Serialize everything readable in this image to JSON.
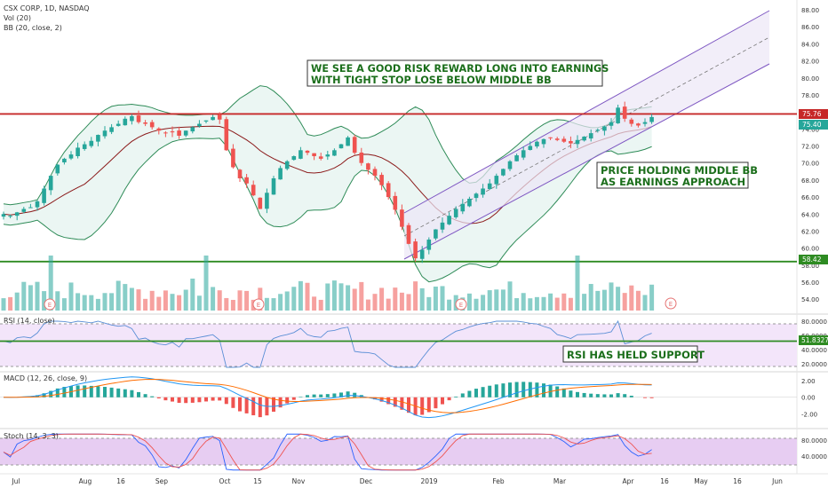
{
  "header": {
    "title": "CSX CORP, 1D, NASDAQ",
    "vol_label": "Vol (20)",
    "bb_label": "BB (20, close, 2)"
  },
  "annotations": {
    "note1_line1": "WE SEE A GOOD RISK REWARD LONG INTO EARNINGS",
    "note1_line2": "WITH TIGHT STOP LOSE BELOW MIDDLE BB",
    "note2_line1": "PRICE HOLDING MIDDLE BB",
    "note2_line2": "AS EARNINGS APPROACH",
    "note3": "RSI HAS HELD SUPPORT"
  },
  "earnings_marker": "E",
  "colors": {
    "up": "#26a69a",
    "down": "#ef5350",
    "resistance": "#c62828",
    "support": "#2e8b22",
    "bb_mid": "#8b1a1a",
    "bb_band": "#2e8b57",
    "channel": "#7e57c2",
    "macd": "#2196f3",
    "signal": "#ff6d00",
    "rsi": "#5b8fd6",
    "stoch_k": "#2962ff",
    "stoch_d": "#ef5350"
  },
  "chart_data": [
    {
      "type": "candlestick",
      "title": "CSX CORP, 1D, NASDAQ",
      "ylim": [
        52,
        89
      ],
      "yticks": [
        "88.00",
        "86.00",
        "84.00",
        "82.00",
        "80.00",
        "78.00",
        "76.00",
        "74.00",
        "72.00",
        "70.00",
        "68.00",
        "66.00",
        "64.00",
        "62.00",
        "60.00",
        "58.00",
        "56.00",
        "54.00"
      ],
      "xticks": [
        "Jul",
        "Aug",
        "16",
        "Sep",
        "Oct",
        "15",
        "Nov",
        "Dec",
        "2019",
        "Feb",
        "Mar",
        "Apr",
        "16",
        "May",
        "16",
        "Jun"
      ],
      "price_labels": {
        "resistance": "75.76",
        "last": "75.40",
        "support": "58.42"
      },
      "levels": {
        "resistance": 75.76,
        "support": 58.42
      },
      "closes_approx": [
        64.0,
        63.8,
        64.2,
        64.6,
        64.8,
        65.5,
        67.0,
        68.5,
        69.8,
        70.5,
        71.0,
        71.8,
        72.2,
        72.6,
        73.3,
        73.8,
        74.2,
        74.6,
        75.2,
        75.5,
        74.8,
        74.6,
        74.2,
        73.8,
        73.5,
        73.6,
        73.2,
        73.8,
        74.2,
        74.6,
        75.0,
        75.4,
        75.1,
        71.5,
        69.5,
        68.2,
        67.6,
        66.2,
        64.6,
        66.5,
        68.2,
        69.4,
        70.2,
        70.8,
        71.5,
        71.2,
        70.8,
        70.5,
        71.0,
        71.5,
        72.2,
        73.0,
        71.2,
        70.0,
        69.2,
        68.5,
        67.4,
        66.0,
        64.5,
        62.5,
        60.5,
        58.8,
        59.8,
        61.0,
        62.2,
        63.0,
        63.8,
        64.6,
        65.2,
        65.8,
        66.4,
        67.0,
        67.6,
        68.5,
        69.3,
        70.2,
        70.9,
        71.5,
        72.0,
        72.5,
        72.8,
        73.0,
        72.7,
        72.5,
        72.3,
        72.7,
        73.1,
        73.5,
        73.9,
        74.3,
        74.8,
        76.5,
        75.2,
        74.6,
        74.4,
        74.8,
        75.4
      ]
    },
    {
      "type": "bar",
      "title": "Vol (20)"
    },
    {
      "type": "line",
      "title": "RSI (14, close)",
      "yticks": [
        "80.0000",
        "60.0000",
        "40.0000",
        "20.0000"
      ],
      "ylim": [
        10,
        85
      ],
      "support_level": 51.8327,
      "support_label": "51.8327"
    },
    {
      "type": "line",
      "title": "MACD (12, 26, close, 9)",
      "yticks": [
        "2.00",
        "0.00",
        "-2.00"
      ],
      "ylim": [
        -3.2,
        2.3
      ]
    },
    {
      "type": "line",
      "title": "Stoch (14, 3, 3)",
      "yticks": [
        "80.0000",
        "40.0000"
      ],
      "ylim": [
        0,
        100
      ]
    }
  ]
}
